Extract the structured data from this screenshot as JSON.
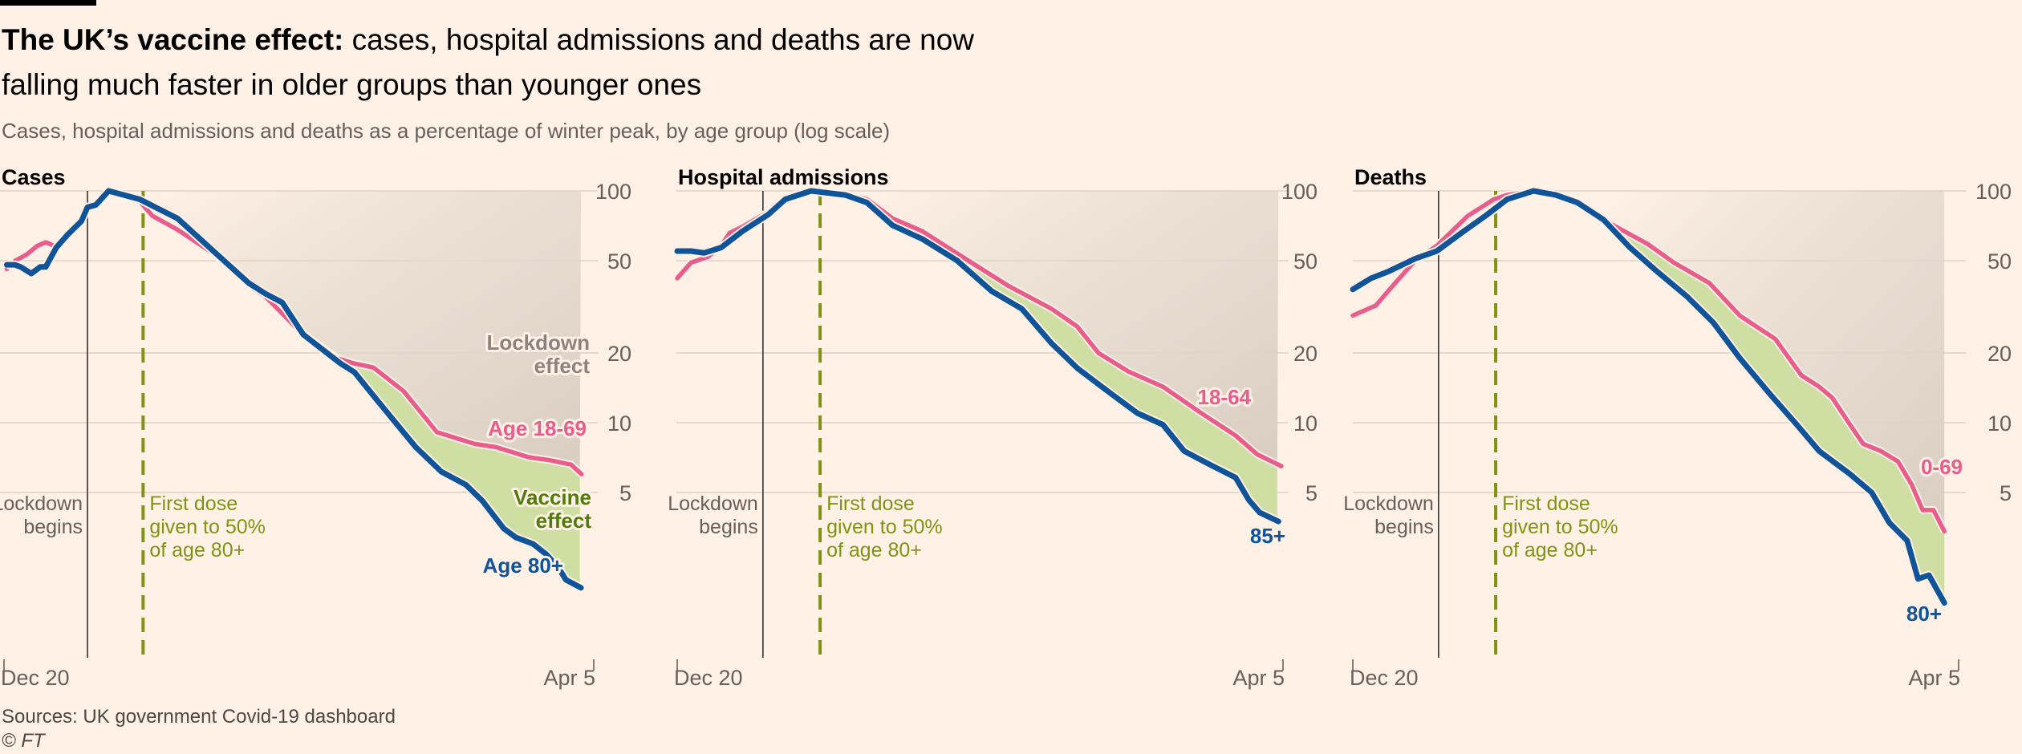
{
  "header": {
    "title_bold": "The UK’s vaccine effect:",
    "title_rest": " cases, hospital admissions and deaths are now falling much faster in older groups than younger ones",
    "subtitle": "Cases, hospital admissions and deaths as a percentage of winter peak, by age group (log scale)"
  },
  "footer": {
    "source": "Sources: UK government Covid-19 dashboard",
    "copyright": "© FT"
  },
  "colors": {
    "background": "#fff1e5",
    "young": "#e95d8c",
    "old": "#0f5499",
    "vaccine_fill": "#cfdea2",
    "lockdown_fill": "#d9cdc1",
    "first_dose": "#7f9412",
    "vaccine_text": "#4e7d0a",
    "lockdown_text": "#8a8380"
  },
  "chart_data": [
    {
      "type": "line",
      "title": "Cases",
      "yscale": "log",
      "ylim": [
        1.4,
        100
      ],
      "yticks": [
        "100",
        "50",
        "20",
        "10",
        "5"
      ],
      "xlim_days": [
        0,
        106
      ],
      "xticks": [
        "Dec 20",
        "Apr 5"
      ],
      "events": [
        {
          "day": 15,
          "lines": [
            "Lockdown",
            "begins"
          ],
          "style": "solid"
        },
        {
          "day": 25,
          "lines": [
            "First dose",
            "given to 50%",
            "of age 80+"
          ],
          "style": "dashed"
        }
      ],
      "lockdown_effect_from_day": 27,
      "vaccine_effect_from_day": 58,
      "area_labels": {
        "lockdown": [
          "Lockdown",
          "effect"
        ],
        "vaccine": [
          "Vaccine",
          "effect"
        ]
      },
      "series": [
        {
          "name": "Age 18-69",
          "group": "young",
          "points": [
            [
              0.5,
              46
            ],
            [
              2,
              50
            ],
            [
              4,
              53
            ],
            [
              6,
              58
            ],
            [
              7.5,
              60
            ],
            [
              8.3,
              59
            ],
            [
              9.4,
              57
            ],
            [
              11.5,
              65
            ],
            [
              13.9,
              74
            ],
            [
              15,
              85
            ],
            [
              16.5,
              87
            ],
            [
              18.8,
              100
            ],
            [
              21,
              96
            ],
            [
              24.4,
              90
            ],
            [
              26.7,
              78
            ],
            [
              31.2,
              68
            ],
            [
              38,
              53
            ],
            [
              44.7,
              38
            ],
            [
              47,
              35
            ],
            [
              53,
              25
            ],
            [
              59.8,
              19
            ],
            [
              63,
              18
            ],
            [
              66.4,
              17.3
            ],
            [
              71.8,
              13.7
            ],
            [
              77.8,
              9.1
            ],
            [
              84.6,
              8.1
            ],
            [
              88.4,
              7.85
            ],
            [
              94.3,
              7.1
            ],
            [
              98,
              6.9
            ],
            [
              101.9,
              6.6
            ],
            [
              103.8,
              6.0
            ]
          ]
        },
        {
          "name": "Age 80+",
          "group": "old",
          "points": [
            [
              0.5,
              48
            ],
            [
              1.9,
              48
            ],
            [
              3,
              47
            ],
            [
              4.9,
              44
            ],
            [
              6.5,
              47
            ],
            [
              7.5,
              47
            ],
            [
              9.4,
              57
            ],
            [
              11.5,
              65
            ],
            [
              13.9,
              74
            ],
            [
              15,
              85
            ],
            [
              16.5,
              87
            ],
            [
              18.8,
              100
            ],
            [
              24.4,
              92
            ],
            [
              31.2,
              76
            ],
            [
              38,
              54
            ],
            [
              44,
              40
            ],
            [
              47,
              36
            ],
            [
              50,
              33
            ],
            [
              53.8,
              24
            ],
            [
              60.5,
              18
            ],
            [
              63,
              16.5
            ],
            [
              67.3,
              12.3
            ],
            [
              74,
              7.85
            ],
            [
              78.6,
              6.15
            ],
            [
              83,
              5.4
            ],
            [
              86,
              4.6
            ],
            [
              89.8,
              3.5
            ],
            [
              92,
              3.2
            ],
            [
              95.1,
              3.0
            ],
            [
              97.5,
              2.7
            ],
            [
              99.6,
              2.38
            ],
            [
              101,
              2.1
            ],
            [
              103.7,
              1.94
            ]
          ]
        }
      ]
    },
    {
      "type": "line",
      "title": "Hospital admissions",
      "yscale": "log",
      "ylim": [
        1.4,
        100
      ],
      "yticks": [
        "100",
        "50",
        "20",
        "10",
        "5"
      ],
      "xlim_days": [
        0,
        106
      ],
      "xticks": [
        "Dec 20",
        "Apr 5"
      ],
      "events": [
        {
          "day": 15,
          "lines": [
            "Lockdown",
            "begins"
          ],
          "style": "solid"
        },
        {
          "day": 25,
          "lines": [
            "First dose",
            "given to 50%",
            "of age 80+"
          ],
          "style": "dashed"
        }
      ],
      "lockdown_effect_from_day": 34,
      "vaccine_effect_from_day": 51,
      "area_labels": null,
      "series": [
        {
          "name": "18-64",
          "group": "young",
          "points": [
            [
              0,
              42
            ],
            [
              2.4,
              49
            ],
            [
              5.4,
              52
            ],
            [
              7.7,
              58
            ],
            [
              9.2,
              66
            ],
            [
              11.4,
              70
            ],
            [
              15.9,
              81
            ],
            [
              18.9,
              94
            ],
            [
              23.4,
              100
            ],
            [
              29.4,
              97
            ],
            [
              33.2,
              92
            ],
            [
              37.7,
              76
            ],
            [
              42.9,
              67
            ],
            [
              50.4,
              51
            ],
            [
              57.9,
              39
            ],
            [
              65.5,
              31
            ],
            [
              70,
              26
            ],
            [
              73.7,
              20
            ],
            [
              79,
              16.6
            ],
            [
              85,
              14.3
            ],
            [
              91.7,
              11
            ],
            [
              97.7,
              8.8
            ],
            [
              101.5,
              7.3
            ],
            [
              105.7,
              6.5
            ]
          ]
        },
        {
          "name": "85+",
          "group": "old",
          "points": [
            [
              0,
              55
            ],
            [
              2.4,
              55
            ],
            [
              4.7,
              54
            ],
            [
              7.7,
              57
            ],
            [
              11.4,
              67
            ],
            [
              15.9,
              79
            ],
            [
              18.9,
              92
            ],
            [
              23.4,
              100
            ],
            [
              29.4,
              96
            ],
            [
              33.2,
              89
            ],
            [
              37.7,
              71
            ],
            [
              42.9,
              62
            ],
            [
              49,
              50
            ],
            [
              55,
              37
            ],
            [
              60.3,
              31
            ],
            [
              65.5,
              22
            ],
            [
              70,
              17.2
            ],
            [
              75.3,
              13.7
            ],
            [
              80.5,
              11
            ],
            [
              85,
              9.8
            ],
            [
              88.7,
              7.55
            ],
            [
              93.2,
              6.6
            ],
            [
              97.7,
              5.8
            ],
            [
              100,
              4.65
            ],
            [
              101.9,
              4.1
            ],
            [
              105.2,
              3.75
            ]
          ]
        }
      ]
    },
    {
      "type": "line",
      "title": "Deaths",
      "yscale": "log",
      "ylim": [
        1.4,
        100
      ],
      "yticks": [
        "100",
        "50",
        "20",
        "10",
        "5"
      ],
      "xlim_days": [
        0,
        106
      ],
      "xticks": [
        "Dec 20",
        "Apr 5"
      ],
      "events": [
        {
          "day": 15,
          "lines": [
            "Lockdown",
            "begins"
          ],
          "style": "solid"
        },
        {
          "day": 25,
          "lines": [
            "First dose",
            "given to 50%",
            "of age 80+"
          ],
          "style": "dashed"
        }
      ],
      "lockdown_effect_from_day": 45,
      "vaccine_effect_from_day": 46,
      "area_labels": null,
      "series": [
        {
          "name": "0-69",
          "group": "young",
          "points": [
            [
              0,
              29
            ],
            [
              4,
              32
            ],
            [
              7,
              39
            ],
            [
              10.9,
              50
            ],
            [
              14.7,
              58
            ],
            [
              20.1,
              78
            ],
            [
              24.7,
              92
            ],
            [
              27,
              96
            ],
            [
              31.6,
              100
            ],
            [
              35.5,
              96
            ],
            [
              39.3,
              89
            ],
            [
              43.9,
              75
            ],
            [
              47,
              68
            ],
            [
              51.6,
              59
            ],
            [
              56.2,
              49
            ],
            [
              62.4,
              40
            ],
            [
              67.7,
              29
            ],
            [
              73.9,
              23
            ],
            [
              78.5,
              16
            ],
            [
              81.6,
              14.3
            ],
            [
              83.9,
              12.8
            ],
            [
              87,
              9.8
            ],
            [
              89.3,
              8.1
            ],
            [
              92.4,
              7.55
            ],
            [
              95.4,
              6.8
            ],
            [
              97.8,
              5.4
            ],
            [
              99.7,
              4.2
            ],
            [
              101.6,
              4.2
            ],
            [
              103.5,
              3.4
            ]
          ]
        },
        {
          "name": "80+",
          "group": "old",
          "points": [
            [
              0,
              37.6
            ],
            [
              3.2,
              42
            ],
            [
              6.3,
              45
            ],
            [
              10.9,
              51
            ],
            [
              14.7,
              55
            ],
            [
              19.4,
              67
            ],
            [
              23.2,
              78
            ],
            [
              27,
              92
            ],
            [
              31.6,
              100
            ],
            [
              35.5,
              96
            ],
            [
              39.3,
              89
            ],
            [
              43.9,
              75
            ],
            [
              48.5,
              57
            ],
            [
              53.2,
              45
            ],
            [
              58.5,
              35
            ],
            [
              63.1,
              27
            ],
            [
              67.7,
              19
            ],
            [
              73.1,
              13.2
            ],
            [
              77.7,
              9.8
            ],
            [
              81.6,
              7.55
            ],
            [
              87,
              6.0
            ],
            [
              90.8,
              5.0
            ],
            [
              93.9,
              3.7
            ],
            [
              97,
              3.1
            ],
            [
              98.9,
              2.12
            ],
            [
              100.8,
              2.2
            ],
            [
              103.5,
              1.67
            ]
          ]
        }
      ]
    }
  ]
}
